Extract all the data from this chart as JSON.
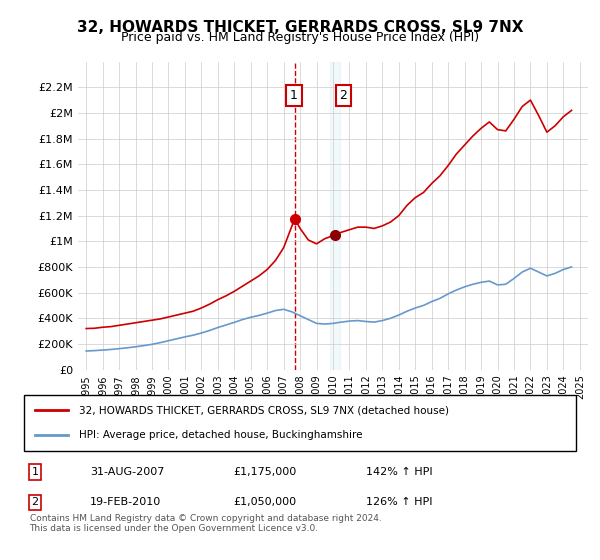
{
  "title": "32, HOWARDS THICKET, GERRARDS CROSS, SL9 7NX",
  "subtitle": "Price paid vs. HM Land Registry's House Price Index (HPI)",
  "legend_line1": "32, HOWARDS THICKET, GERRARDS CROSS, SL9 7NX (detached house)",
  "legend_line2": "HPI: Average price, detached house, Buckinghamshire",
  "footnote": "Contains HM Land Registry data © Crown copyright and database right 2024.\nThis data is licensed under the Open Government Licence v3.0.",
  "transaction1_label": "1",
  "transaction1_date": "31-AUG-2007",
  "transaction1_price": "£1,175,000",
  "transaction1_hpi": "142% ↑ HPI",
  "transaction2_label": "2",
  "transaction2_date": "19-FEB-2010",
  "transaction2_price": "£1,050,000",
  "transaction2_hpi": "126% ↑ HPI",
  "red_line_color": "#cc0000",
  "blue_line_color": "#6699cc",
  "background_color": "#ffffff",
  "grid_color": "#cccccc",
  "marker1_x": 2007.67,
  "marker1_y": 1175000,
  "marker2_x": 2010.13,
  "marker2_y": 1050000,
  "vline1_x": 2007.67,
  "vline2_x": 2010.13,
  "ylim": [
    0,
    2400000
  ],
  "xlim": [
    1994.5,
    2025.5
  ],
  "yticks": [
    0,
    200000,
    400000,
    600000,
    800000,
    1000000,
    1200000,
    1400000,
    1600000,
    1800000,
    2000000,
    2200000
  ],
  "ytick_labels": [
    "£0",
    "£200K",
    "£400K",
    "£600K",
    "£800K",
    "£1M",
    "£1.2M",
    "£1.4M",
    "£1.6M",
    "£1.8M",
    "£2M",
    "£2.2M"
  ],
  "xticks": [
    1995,
    1996,
    1997,
    1998,
    1999,
    2000,
    2001,
    2002,
    2003,
    2004,
    2005,
    2006,
    2007,
    2008,
    2009,
    2010,
    2011,
    2012,
    2013,
    2014,
    2015,
    2016,
    2017,
    2018,
    2019,
    2020,
    2021,
    2022,
    2023,
    2024,
    2025
  ],
  "red_x": [
    1995.0,
    1995.5,
    1996.0,
    1996.5,
    1997.0,
    1997.5,
    1998.0,
    1998.5,
    1999.0,
    1999.5,
    2000.0,
    2000.5,
    2001.0,
    2001.5,
    2002.0,
    2002.5,
    2003.0,
    2003.5,
    2004.0,
    2004.5,
    2005.0,
    2005.5,
    2006.0,
    2006.5,
    2007.0,
    2007.67,
    2008.0,
    2008.5,
    2009.0,
    2009.5,
    2010.13,
    2010.5,
    2011.0,
    2011.5,
    2012.0,
    2012.5,
    2013.0,
    2013.5,
    2014.0,
    2014.5,
    2015.0,
    2015.5,
    2016.0,
    2016.5,
    2017.0,
    2017.5,
    2018.0,
    2018.5,
    2019.0,
    2019.5,
    2020.0,
    2020.5,
    2021.0,
    2021.5,
    2022.0,
    2022.5,
    2023.0,
    2023.5,
    2024.0,
    2024.5
  ],
  "red_y": [
    320000,
    322000,
    330000,
    335000,
    345000,
    355000,
    365000,
    375000,
    385000,
    395000,
    410000,
    425000,
    440000,
    455000,
    480000,
    510000,
    545000,
    575000,
    610000,
    650000,
    690000,
    730000,
    780000,
    850000,
    950000,
    1175000,
    1100000,
    1010000,
    980000,
    1020000,
    1050000,
    1070000,
    1090000,
    1110000,
    1110000,
    1100000,
    1120000,
    1150000,
    1200000,
    1280000,
    1340000,
    1380000,
    1450000,
    1510000,
    1590000,
    1680000,
    1750000,
    1820000,
    1880000,
    1930000,
    1870000,
    1860000,
    1950000,
    2050000,
    2100000,
    1980000,
    1850000,
    1900000,
    1970000,
    2020000
  ],
  "blue_x": [
    1995.0,
    1995.5,
    1996.0,
    1996.5,
    1997.0,
    1997.5,
    1998.0,
    1998.5,
    1999.0,
    1999.5,
    2000.0,
    2000.5,
    2001.0,
    2001.5,
    2002.0,
    2002.5,
    2003.0,
    2003.5,
    2004.0,
    2004.5,
    2005.0,
    2005.5,
    2006.0,
    2006.5,
    2007.0,
    2007.5,
    2008.0,
    2008.5,
    2009.0,
    2009.5,
    2010.0,
    2010.5,
    2011.0,
    2011.5,
    2012.0,
    2012.5,
    2013.0,
    2013.5,
    2014.0,
    2014.5,
    2015.0,
    2015.5,
    2016.0,
    2016.5,
    2017.0,
    2017.5,
    2018.0,
    2018.5,
    2019.0,
    2019.5,
    2020.0,
    2020.5,
    2021.0,
    2021.5,
    2022.0,
    2022.5,
    2023.0,
    2023.5,
    2024.0,
    2024.5
  ],
  "blue_y": [
    145000,
    148000,
    152000,
    157000,
    163000,
    170000,
    178000,
    187000,
    197000,
    210000,
    225000,
    240000,
    255000,
    268000,
    285000,
    305000,
    328000,
    348000,
    368000,
    390000,
    408000,
    422000,
    440000,
    460000,
    470000,
    450000,
    420000,
    390000,
    360000,
    355000,
    360000,
    370000,
    378000,
    382000,
    375000,
    370000,
    382000,
    400000,
    425000,
    455000,
    480000,
    500000,
    530000,
    555000,
    590000,
    620000,
    645000,
    665000,
    680000,
    690000,
    660000,
    665000,
    710000,
    760000,
    790000,
    760000,
    730000,
    750000,
    780000,
    800000
  ]
}
